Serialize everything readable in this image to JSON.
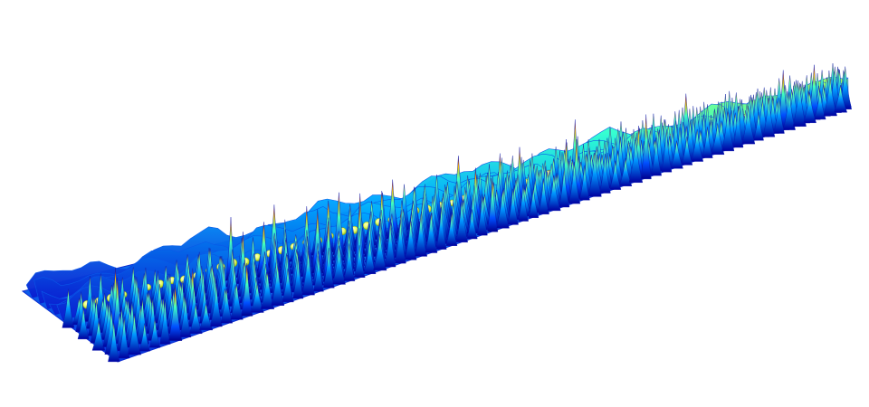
{
  "scene": {
    "subject": "3d-surface-render",
    "background": "#ffffff",
    "colormap": [
      "#00008f",
      "#0000ff",
      "#0060ff",
      "#00c0ff",
      "#30ffd0",
      "#a0ff60",
      "#ffff00",
      "#ff9000",
      "#ff0000"
    ],
    "highlight_sphere_color": "#e6ff60"
  }
}
